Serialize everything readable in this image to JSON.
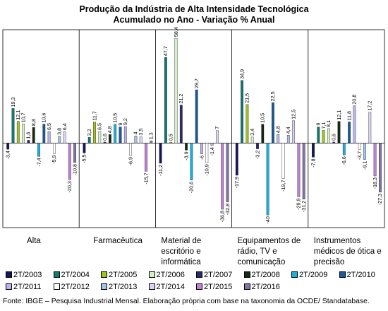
{
  "chart_data": {
    "type": "bar",
    "title": "Produção da Indústria de Alta Intensidade Tecnológica",
    "subtitle": "Acumulado no Ano - Variação % Anual",
    "categories": [
      [
        "Alta"
      ],
      [
        "Farmacêutica"
      ],
      [
        "Material de",
        "escritório e",
        "informática"
      ],
      [
        "Equipamentos de",
        "rádio, TV e",
        "comunicação"
      ],
      [
        "Instrumentos",
        "médicos de ótica e",
        "precisão"
      ]
    ],
    "series": [
      {
        "name": "2T/2003",
        "color": "#14145a",
        "values": [
          -3.4,
          -5.5,
          -11.2,
          -17.9,
          -7.8
        ]
      },
      {
        "name": "2T/2004",
        "color": "#0f7a72",
        "values": [
          19.3,
          3.2,
          47.7,
          34.9,
          9.0
        ]
      },
      {
        "name": "2T/2005",
        "color": "#a2c21c",
        "values": [
          12.1,
          11.7,
          0.5,
          21.5,
          7.1
        ]
      },
      {
        "name": "2T/2006",
        "color": "#d8f0c8",
        "values": [
          10.7,
          6.5,
          58.4,
          3.4,
          8.1
        ]
      },
      {
        "name": "2T/2007",
        "color": "#28286e",
        "values": [
          1.6,
          0.6,
          21.2,
          -3.2,
          0.6
        ]
      },
      {
        "name": "2T/2008",
        "color": "#142814",
        "values": [
          8.8,
          4.8,
          -3.9,
          10.5,
          12.1
        ]
      },
      {
        "name": "2T/2009",
        "color": "#1ab0e0",
        "values": [
          -7.4,
          10.5,
          -20.6,
          -40.0,
          -6.6
        ]
      },
      {
        "name": "2T/2010",
        "color": "#1a5a9a",
        "values": [
          10.6,
          9.0,
          29.7,
          22.5,
          11.8
        ]
      },
      {
        "name": "2T/2011",
        "color": "#b8b4ec",
        "values": [
          6.5,
          9.2,
          -6.0,
          4.8,
          20.8
        ]
      },
      {
        "name": "2T/2012",
        "color": "#ffffff",
        "values": [
          -5.9,
          -6.9,
          -10.9,
          -19.7,
          -3.7
        ]
      },
      {
        "name": "2T/2013",
        "color": "#a8c4e4",
        "values": [
          3.8,
          4.0,
          -1.4,
          4.4,
          -9.1
        ]
      },
      {
        "name": "2T/2014",
        "color": "#d8d4f8",
        "values": [
          6.4,
          3.5,
          7.0,
          12.5,
          17.2
        ]
      },
      {
        "name": "2T/2015",
        "color": "#c080d8",
        "values": [
          -20.3,
          -15.7,
          -36.8,
          -29.9,
          -18.3
        ]
      },
      {
        "name": "2T/2016",
        "color": "#8474a4",
        "values": [
          -10.8,
          1.3,
          -32.8,
          -31.2,
          -27.3
        ]
      }
    ],
    "ylim": [
      -48,
      62
    ],
    "legend_position": "bottom"
  },
  "source": "Fonte: IBGE – Pesquisa Industrial Mensal. Elaboração própria com base na taxonomia da OCDE/ Standatabase."
}
